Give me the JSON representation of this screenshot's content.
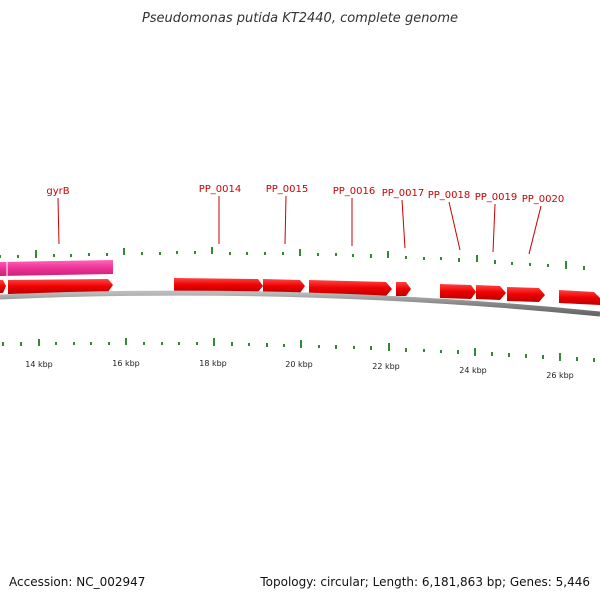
{
  "title": "Pseudomonas putida KT2440, complete genome",
  "footer": {
    "accession": "Accession: NC_002947",
    "summary": "Topology: circular; Length: 6,181,863 bp; Genes: 5,446"
  },
  "gene_labels": [
    "gyrB",
    "PP_0014",
    "PP_0015",
    "PP_0016",
    "PP_0017",
    "PP_0018",
    "PP_0019",
    "PP_0020"
  ],
  "kbp_labels": [
    "14 kbp",
    "16 kbp",
    "18 kbp",
    "20 kbp",
    "22 kbp",
    "24 kbp",
    "26 kbp"
  ],
  "colors": {
    "forward_gene": "#ee0000",
    "rrna_or_highlight": "#ee3399",
    "backbone": "#888888",
    "tick": "#338833",
    "label_line": "#cc0000"
  }
}
